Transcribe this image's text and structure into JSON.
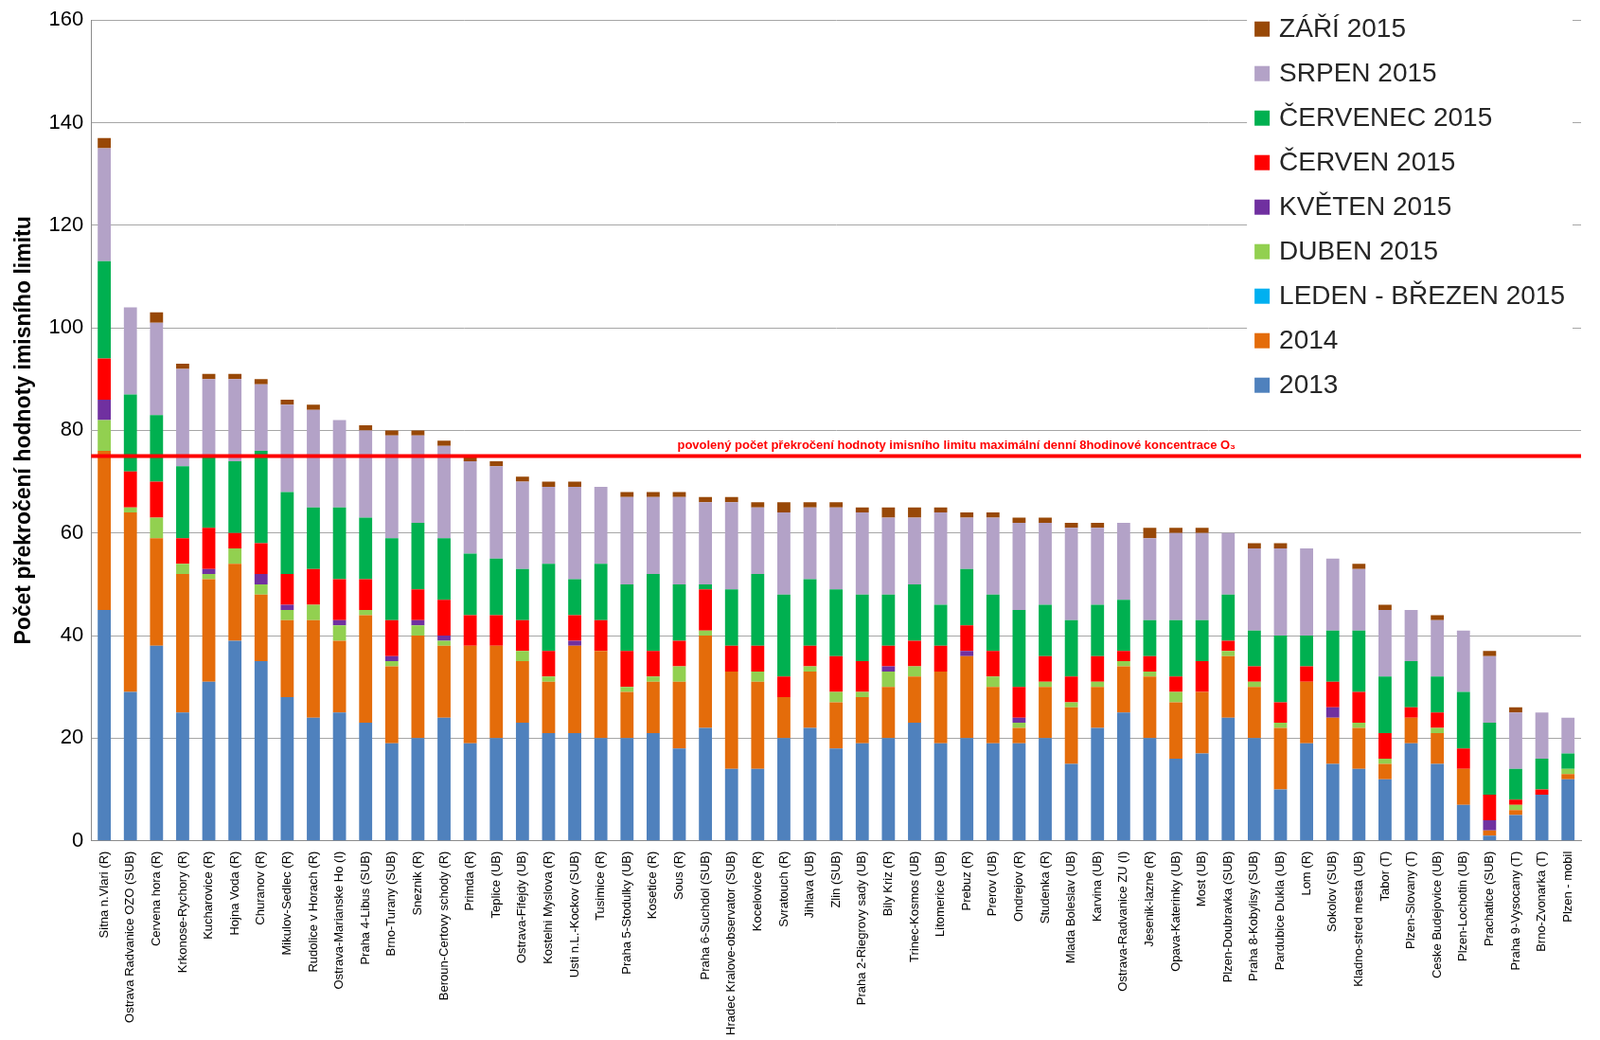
{
  "chart_data": {
    "type": "bar",
    "y_label": "Počet překročení hodnoty imisního limitu",
    "stacked": true,
    "grid": true,
    "legend": "top-right",
    "ylim": [
      0,
      160
    ],
    "yticks": [
      0,
      20,
      40,
      60,
      80,
      100,
      120,
      140,
      160
    ],
    "annotations": [
      {
        "y": 75,
        "text": "povolený počet překročení hodnoty imisního limitu maximální denní 8hodinové koncentrace O₃",
        "color": "#ff0000"
      }
    ],
    "categories": [
      "Sitna n.Vlari (R)",
      "Ostrava Radvanice OZO (SUB)",
      "Cervena hora (R)",
      "Krkonose-Rychory (R)",
      "Kucharovice (R)",
      "Hojna Voda (R)",
      "Churanov (R)",
      "Mikulov-Sedlec (R)",
      "Rudolice v Horach (R)",
      "Ostrava-Marianske Ho (I)",
      "Praha 4-Libus (SUB)",
      "Brno-Turany (SUB)",
      "Sneznik (R)",
      "Beroun-Certovy schody (R)",
      "Primda (R)",
      "Teplice (UB)",
      "Ostrava-Fifejdy (UB)",
      "Kostelni Myslova (R)",
      "Usti n.L.-Kockov (SUB)",
      "Tusimice (R)",
      "Praha 5-Stodulky (UB)",
      "Kosetice (R)",
      "Sous (R)",
      "Praha 6-Suchdol (SUB)",
      "Hradec Kralove-observator (SUB)",
      "Kocelovice (R)",
      "Svratouch (R)",
      "Jihlava (UB)",
      "Zlin (SUB)",
      "Praha 2-Riegrovy sady (UB)",
      "Bily Kriz (R)",
      "Trinec-Kosmos (UB)",
      "Litomerice (UB)",
      "Prebuz (R)",
      "Prerov (UB)",
      "Ondrejov (R)",
      "Studenka (R)",
      "Mlada Boleslav (UB)",
      "Karvina (UB)",
      "Ostrava-Radvanice ZU (I)",
      "Jesenik-lazne (R)",
      "Opava-Katerinky (UB)",
      "Most (UB)",
      "Plzen-Doubravka (SUB)",
      "Praha 8-Kobylisy (SUB)",
      "Pardubice Dukla (UB)",
      "Lom (R)",
      "Sokolov (SUB)",
      "Kladno-stred mesta (UB)",
      "Tabor (T)",
      "Plzen-Slovany (T)",
      "Ceske Budejovice (UB)",
      "Plzen-Lochotin (UB)",
      "Prachatice (SUB)",
      "Praha 9-Vysocany (T)",
      "Brno-Zvonarka (T)",
      "Plzen - mobil"
    ],
    "series": [
      {
        "name": "2013",
        "color": "#4f81bd",
        "values": [
          45,
          29,
          38,
          25,
          31,
          39,
          35,
          28,
          24,
          25,
          23,
          19,
          20,
          24,
          19,
          20,
          23,
          21,
          21,
          20,
          20,
          21,
          18,
          22,
          14,
          14,
          20,
          22,
          18,
          19,
          20,
          23,
          19,
          20,
          19,
          19,
          20,
          15,
          22,
          25,
          20,
          16,
          17,
          24,
          20,
          10,
          19,
          15,
          14,
          12,
          19,
          15,
          7,
          1,
          5,
          9,
          12
        ]
      },
      {
        "name": "2014",
        "color": "#e46c0a",
        "values": [
          31,
          35,
          21,
          27,
          20,
          15,
          13,
          15,
          19,
          14,
          21,
          15,
          20,
          14,
          19,
          18,
          12,
          10,
          17,
          17,
          9,
          10,
          13,
          18,
          19,
          17,
          8,
          11,
          9,
          9,
          10,
          9,
          14,
          16,
          11,
          3,
          10,
          11,
          8,
          9,
          12,
          11,
          12,
          12,
          10,
          12,
          12,
          9,
          8,
          3,
          5,
          6,
          7,
          1,
          1,
          0,
          1
        ]
      },
      {
        "name": "LEDEN - BŘEZEN 2015",
        "color": "#00b0f0",
        "values": [
          0,
          0,
          0,
          0,
          0,
          0,
          0,
          0,
          0,
          0,
          0,
          0,
          0,
          0,
          0,
          0,
          0,
          0,
          0,
          0,
          0,
          0,
          0,
          0,
          0,
          0,
          0,
          0,
          0,
          0,
          0,
          0,
          0,
          0,
          0,
          0,
          0,
          0,
          0,
          0,
          0,
          0,
          0,
          0,
          0,
          0,
          0,
          0,
          0,
          0,
          0,
          0,
          0,
          0,
          0,
          0,
          0
        ]
      },
      {
        "name": "DUBEN 2015",
        "color": "#92d050",
        "values": [
          6,
          1,
          4,
          2,
          1,
          3,
          2,
          2,
          3,
          3,
          1,
          1,
          2,
          1,
          0,
          0,
          2,
          1,
          0,
          0,
          1,
          1,
          3,
          1,
          0,
          2,
          0,
          1,
          2,
          1,
          3,
          2,
          0,
          0,
          2,
          1,
          1,
          1,
          1,
          1,
          1,
          2,
          0,
          1,
          1,
          1,
          0,
          0,
          1,
          1,
          0,
          1,
          0,
          0,
          1,
          0,
          1
        ]
      },
      {
        "name": "KVĚTEN 2015",
        "color": "#7030a0",
        "values": [
          4,
          0,
          0,
          0,
          1,
          0,
          2,
          1,
          0,
          1,
          0,
          1,
          1,
          1,
          0,
          0,
          0,
          0,
          1,
          0,
          0,
          0,
          0,
          0,
          0,
          0,
          0,
          0,
          0,
          0,
          1,
          0,
          0,
          1,
          0,
          1,
          0,
          0,
          0,
          0,
          0,
          0,
          0,
          0,
          0,
          0,
          0,
          2,
          0,
          0,
          0,
          0,
          0,
          2,
          0,
          0,
          0
        ]
      },
      {
        "name": "ČERVEN 2015",
        "color": "#ff0000",
        "values": [
          8,
          7,
          7,
          5,
          8,
          3,
          6,
          6,
          7,
          8,
          6,
          7,
          6,
          7,
          6,
          6,
          6,
          5,
          5,
          6,
          7,
          5,
          5,
          8,
          5,
          5,
          4,
          4,
          7,
          6,
          4,
          5,
          5,
          5,
          5,
          6,
          5,
          5,
          5,
          2,
          3,
          3,
          6,
          2,
          3,
          4,
          3,
          5,
          6,
          5,
          2,
          3,
          4,
          5,
          1,
          1,
          0
        ]
      },
      {
        "name": "ČERVENEC 2015",
        "color": "#00b050",
        "values": [
          19,
          15,
          13,
          14,
          14,
          14,
          18,
          16,
          12,
          14,
          12,
          16,
          13,
          12,
          12,
          11,
          10,
          17,
          7,
          11,
          13,
          15,
          11,
          1,
          11,
          14,
          16,
          13,
          13,
          13,
          10,
          11,
          8,
          11,
          11,
          15,
          10,
          11,
          10,
          10,
          7,
          11,
          8,
          9,
          7,
          13,
          6,
          10,
          12,
          11,
          9,
          7,
          11,
          14,
          6,
          6,
          3
        ]
      },
      {
        "name": "SRPEN 2015",
        "color": "#b3a2c7",
        "values": [
          22,
          17,
          18,
          19,
          15,
          16,
          13,
          17,
          19,
          17,
          17,
          20,
          17,
          18,
          18,
          18,
          17,
          15,
          18,
          15,
          17,
          15,
          17,
          16,
          17,
          13,
          16,
          14,
          16,
          16,
          15,
          13,
          18,
          10,
          15,
          17,
          16,
          18,
          15,
          15,
          16,
          17,
          17,
          12,
          16,
          17,
          17,
          14,
          12,
          13,
          10,
          11,
          12,
          13,
          11,
          9,
          7
        ]
      },
      {
        "name": "ZÁŘÍ 2015",
        "color": "#984807",
        "values": [
          2,
          0,
          2,
          1,
          1,
          1,
          1,
          1,
          1,
          0,
          1,
          1,
          1,
          1,
          1,
          1,
          1,
          1,
          1,
          0,
          1,
          1,
          1,
          1,
          1,
          1,
          2,
          1,
          1,
          1,
          2,
          2,
          1,
          1,
          1,
          1,
          1,
          1,
          1,
          0,
          2,
          1,
          1,
          0,
          1,
          1,
          0,
          0,
          1,
          1,
          0,
          1,
          0,
          1,
          1,
          0,
          0
        ]
      }
    ]
  }
}
